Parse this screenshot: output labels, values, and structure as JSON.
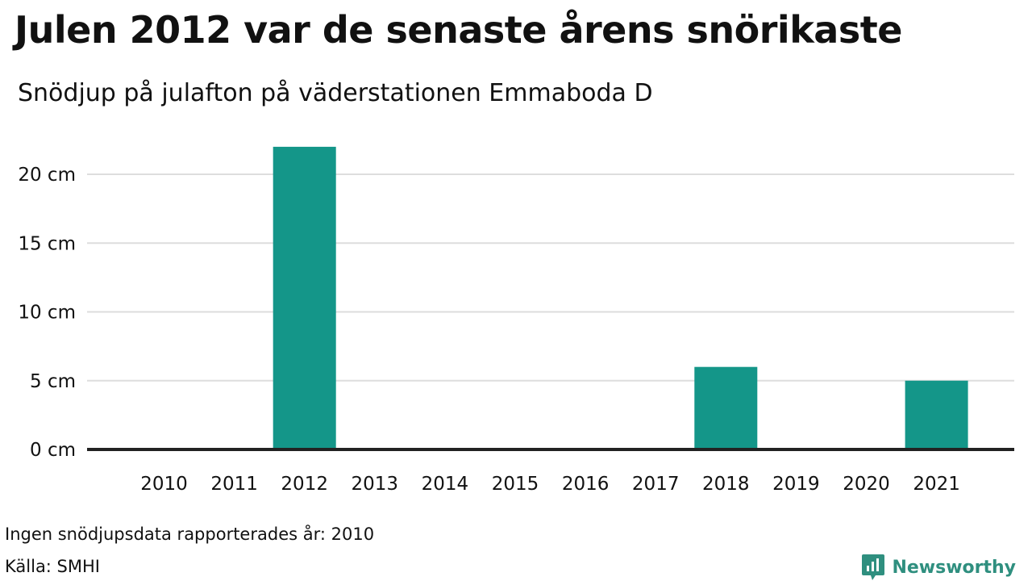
{
  "title": "Julen 2012 var de senaste årens snörikaste",
  "subtitle": "Snödjup på julafton på väderstationen Emmaboda D",
  "footnote": "Ingen snödjupsdata rapporterades år: 2010",
  "source": "Källa: SMHI",
  "brand": "Newsworthy",
  "colors": {
    "bar": "#149689",
    "grid": "#dddddd",
    "baseline": "#222222",
    "brand": "#2f8f7f"
  },
  "chart_data": {
    "type": "bar",
    "categories": [
      "2010",
      "2011",
      "2012",
      "2013",
      "2014",
      "2015",
      "2016",
      "2017",
      "2018",
      "2019",
      "2020",
      "2021"
    ],
    "values": [
      0,
      0,
      22,
      0,
      0,
      0,
      0,
      0,
      6,
      0,
      0,
      5
    ],
    "unit": "cm",
    "yticks": [
      0,
      5,
      10,
      15,
      20
    ],
    "ytick_labels": [
      "0 cm",
      "5 cm",
      "10 cm",
      "15 cm",
      "20 cm"
    ],
    "ylim": [
      0,
      22
    ],
    "grid": true,
    "legend": "none",
    "xlabel": "",
    "ylabel": ""
  }
}
